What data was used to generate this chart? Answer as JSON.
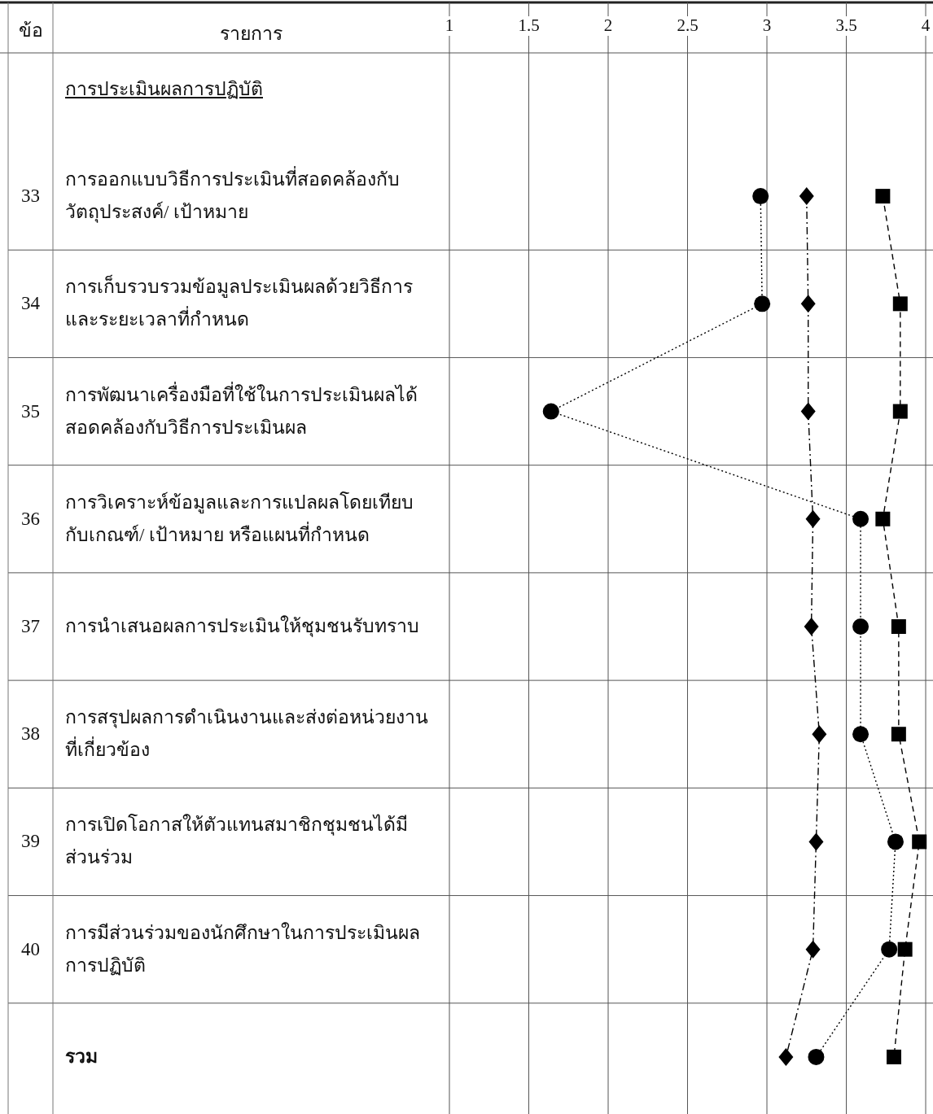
{
  "chart_data": {
    "type": "line",
    "orientation": "horizontal",
    "ylabel": "รายการ",
    "y2label": "ข้อ",
    "annotations": [
      "การประเมินผลการปฏิบัติ"
    ],
    "categories": [
      "การออกแบบวิธีการประเมินที่สอดคล้องกับวัตถุประสงค์/ เป้าหมาย",
      "การเก็บรวบรวมข้อมูลประเมินผลด้วยวิธีการและระยะเวลาที่กำหนด",
      "การพัฒนาเครื่องมือที่ใช้ในการประเมินผลได้สอดคล้องกับวิธีการประเมินผล",
      "การวิเคราะห์ข้อมูลและการแปลผลโดยเทียบกับเกณฑ์/ เป้าหมาย หรือแผนที่กำหนด",
      "การนำเสนอผลการประเมินให้ชุมชนรับทราบ",
      "การสรุปผลการดำเนินงานและส่งต่อหน่วยงานที่เกี่ยวข้อง",
      "การเปิดโอกาสให้ตัวแทนสมาชิกชุมชนได้มีส่วนร่วม",
      "การมีส่วนร่วมของนักศึกษาในการประเมินผลการปฏิบัติ",
      "รวม"
    ],
    "y2_categories": [
      "33",
      "34",
      "35",
      "36",
      "37",
      "38",
      "39",
      "40",
      null
    ],
    "xlim": [
      1,
      4
    ],
    "xticks": [
      1,
      1.5,
      2,
      2.5,
      3,
      3.5,
      4
    ],
    "grid": "x",
    "series": [
      {
        "color": "#000000",
        "marker": "circle",
        "line_style": "dotted",
        "values": [
          2.96,
          2.97,
          1.64,
          3.59,
          3.59,
          3.59,
          3.81,
          3.77,
          3.31
        ]
      },
      {
        "color": "#000000",
        "marker": "diamond",
        "line_style": "dashdot",
        "values": [
          3.25,
          3.26,
          3.26,
          3.29,
          3.28,
          3.33,
          3.31,
          3.29,
          3.12
        ]
      },
      {
        "color": "#000000",
        "marker": "square",
        "line_style": "dashed",
        "values": [
          3.73,
          3.84,
          3.84,
          3.73,
          3.83,
          3.83,
          3.96,
          3.87,
          3.8
        ]
      }
    ]
  }
}
